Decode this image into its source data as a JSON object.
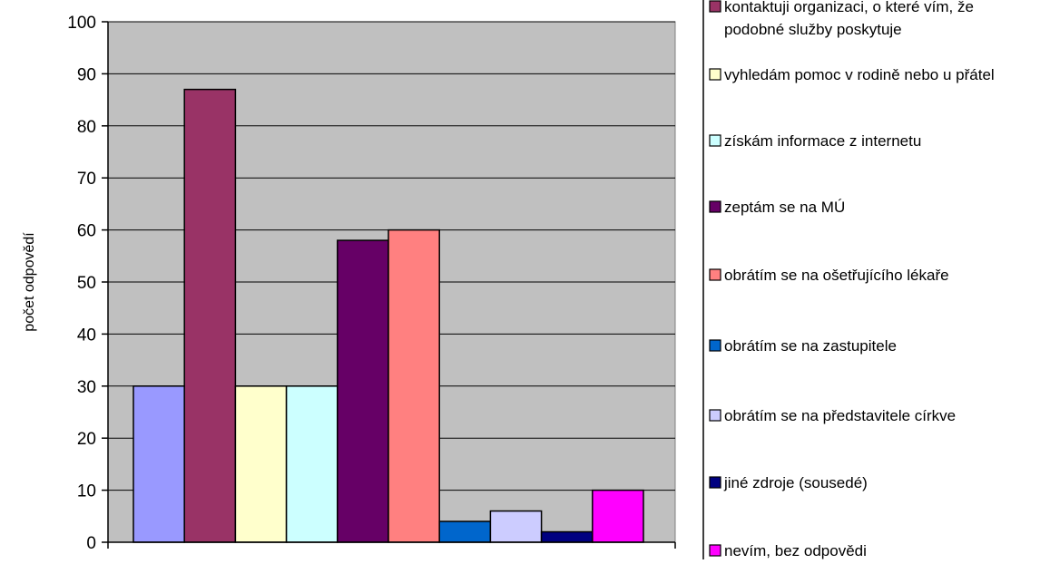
{
  "chart_data": {
    "type": "bar",
    "title": "",
    "xlabel": "",
    "ylabel": "počet odpovědí",
    "ylim": [
      0,
      100
    ],
    "yticks": [
      0,
      10,
      20,
      30,
      40,
      50,
      60,
      70,
      80,
      90,
      100
    ],
    "grid": true,
    "legend_position": "right",
    "plot_background": "#c0c0c0",
    "series": [
      {
        "values": [
          30
        ],
        "color": "#9999ff"
      },
      {
        "name": "kontaktuji organizaci, o které vím, že podobné služby poskytuje",
        "values": [
          87
        ],
        "color": "#993366"
      },
      {
        "name": "vyhledám pomoc v rodině nebo u přátel",
        "values": [
          30
        ],
        "color": "#ffffcc"
      },
      {
        "name": "získám informace z internetu",
        "values": [
          30
        ],
        "color": "#ccffff"
      },
      {
        "name": "zeptám se na MÚ",
        "values": [
          58
        ],
        "color": "#660066"
      },
      {
        "name": "obrátím se na ošetřujícího lékaře",
        "values": [
          60
        ],
        "color": "#ff8080"
      },
      {
        "name": "obrátím se na zastupitele",
        "values": [
          4
        ],
        "color": "#0066cc"
      },
      {
        "name": "obrátím se na představitele církve",
        "values": [
          6
        ],
        "color": "#ccccff"
      },
      {
        "name": "jiné zdroje (sousedé)",
        "values": [
          2
        ],
        "color": "#000080"
      },
      {
        "name": "nevím, bez odpovědi",
        "values": [
          10
        ],
        "color": "#ff00ff"
      }
    ]
  }
}
